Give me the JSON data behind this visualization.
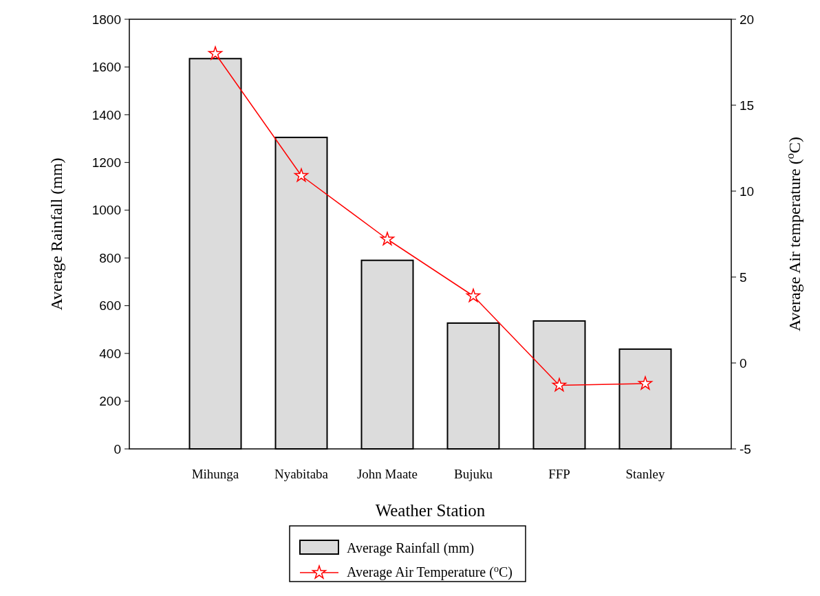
{
  "chart_data": {
    "type": "bar",
    "xlabel": "Weather Station",
    "ylabel": "Average Rainfall (mm)",
    "y2label": "Average Air temperature ($^{o}$C)",
    "categories": [
      "Mihunga",
      "Nyabitaba",
      "John Maate",
      "Bujuku",
      "FFP",
      "Stanley"
    ],
    "series": [
      {
        "name": "Average Rainfall (mm)",
        "color": "#dcdcdc",
        "values": [
          1635,
          1305,
          790,
          527,
          536,
          418
        ]
      },
      {
        "name": "Average Air Temperature ($^{o}$C)",
        "type": "line",
        "axis": "y2",
        "color": "#ff0000",
        "marker": "star",
        "values": [
          18,
          10.9,
          7.2,
          3.9,
          -1.3,
          -1.2
        ]
      }
    ],
    "ylim": [
      0,
      1800
    ],
    "yticks": [
      0,
      200,
      400,
      600,
      800,
      1000,
      1200,
      1400,
      1600,
      1800
    ],
    "y2lim": [
      -5,
      20
    ],
    "y2ticks": [
      -5,
      0,
      5,
      10,
      15,
      20
    ],
    "grid": false,
    "legend": "bottom"
  }
}
